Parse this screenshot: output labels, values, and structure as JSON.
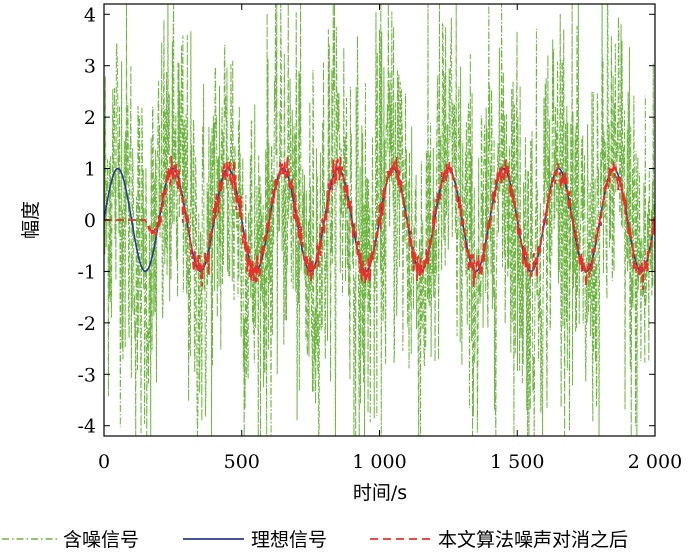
{
  "chart_data": {
    "type": "line",
    "xlabel": "时间/s",
    "ylabel": "幅度",
    "xlim": [
      0,
      2000
    ],
    "ylim": [
      -4.2,
      4.2
    ],
    "x_ticks": [
      0,
      500,
      1000,
      1500,
      2000
    ],
    "x_tick_labels": [
      "0",
      "500",
      "1 000",
      "1 500",
      "2 000"
    ],
    "y_ticks": [
      -4,
      -3,
      -2,
      -1,
      0,
      1,
      2,
      3,
      4
    ],
    "y_tick_labels": [
      "-4",
      "-3",
      "-2",
      "-1",
      "0",
      "1",
      "2",
      "3",
      "4"
    ],
    "grid": false,
    "legend_position": "bottom",
    "series": [
      {
        "name": "含噪信号",
        "color": "#6db33f",
        "line_style": "dash-dot",
        "description_values": {
          "x_start": 0,
          "x_end": 2000,
          "base_period": 200,
          "base_amplitude": 1,
          "noise_peak_range": [
            -4.2,
            4.2
          ]
        }
      },
      {
        "name": "理想信号",
        "color": "#2b3a8c",
        "line_style": "solid",
        "description_values": {
          "x_start": 0,
          "x_end": 2000,
          "period": 200,
          "amplitude": 1
        }
      },
      {
        "name": "本文算法噪声对消之后",
        "color": "#e8312a",
        "line_style": "dashed",
        "description_values": {
          "x_start": 0,
          "x_end": 2000,
          "period": 200,
          "amplitude": 1,
          "initial_zero_until": 150
        }
      }
    ]
  }
}
